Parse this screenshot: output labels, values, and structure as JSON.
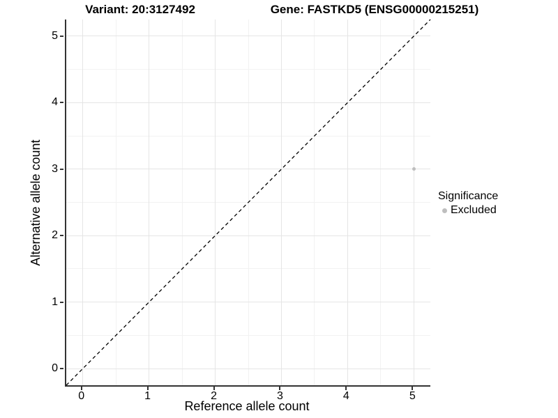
{
  "chart_data": {
    "type": "scatter",
    "titles": {
      "variant": "Variant: 20:3127492",
      "gene": "Gene: FASTKD5 (ENSG00000215251)"
    },
    "xlabel": "Reference allele count",
    "ylabel": "Alternative allele count",
    "xlim": [
      -0.25,
      5.25
    ],
    "ylim": [
      -0.25,
      5.25
    ],
    "x_ticks": [
      0,
      1,
      2,
      3,
      4,
      5
    ],
    "y_ticks": [
      0,
      1,
      2,
      3,
      4,
      5
    ],
    "x_minor_ticks": [
      0.5,
      1.5,
      2.5,
      3.5,
      4.5
    ],
    "y_minor_ticks": [
      0.5,
      1.5,
      2.5,
      3.5,
      4.5
    ],
    "grid": true,
    "points": [
      {
        "x": 5,
        "y": 3,
        "significance": "Excluded"
      }
    ],
    "reference_line": {
      "slope": 1,
      "intercept": 0,
      "style": "dashed",
      "color": "#000000"
    },
    "legend": {
      "title": "Significance",
      "position": "right",
      "items": [
        {
          "label": "Excluded",
          "color": "#bebebe",
          "marker": "circle"
        }
      ]
    },
    "colors": {
      "point": "#bebebe",
      "grid_major": "#e5e5e5",
      "grid_minor": "#f2f2f2",
      "axis_line": "#333333",
      "text": "#000000",
      "background": "#ffffff"
    }
  }
}
